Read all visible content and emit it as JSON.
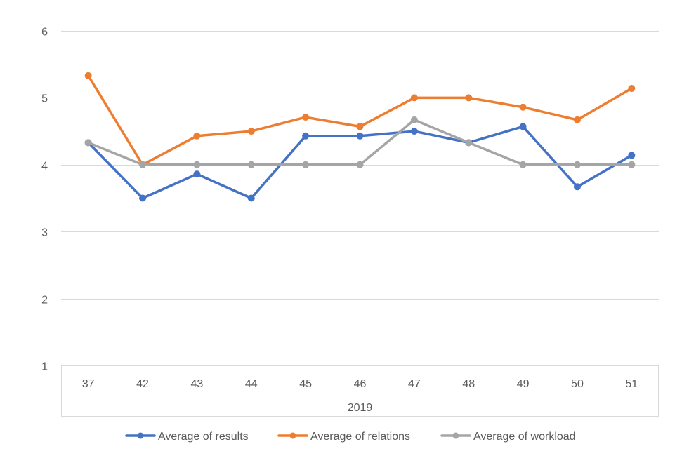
{
  "chart_data": {
    "type": "line",
    "title": "",
    "xlabel": "",
    "ylabel": "",
    "ylim": [
      1,
      6
    ],
    "y_ticks": [
      "1",
      "2",
      "3",
      "4",
      "5",
      "6"
    ],
    "categories": [
      "37",
      "42",
      "43",
      "44",
      "45",
      "46",
      "47",
      "48",
      "49",
      "50",
      "51"
    ],
    "group_label": "2019",
    "grid": true,
    "legend_position": "bottom",
    "series": [
      {
        "name": "Average of results",
        "color": "#4472C4",
        "values": [
          4.33,
          3.5,
          3.86,
          3.5,
          4.43,
          4.43,
          4.5,
          4.33,
          4.57,
          3.67,
          4.14
        ]
      },
      {
        "name": "Average of relations",
        "color": "#ED7D31",
        "values": [
          5.33,
          4.0,
          4.43,
          4.5,
          4.71,
          4.57,
          5.0,
          5.0,
          4.86,
          4.67,
          5.14
        ]
      },
      {
        "name": "Average of workload",
        "color": "#A5A5A5",
        "values": [
          4.33,
          4.0,
          4.0,
          4.0,
          4.0,
          4.0,
          4.67,
          4.33,
          4.0,
          4.0,
          4.0
        ]
      }
    ]
  }
}
